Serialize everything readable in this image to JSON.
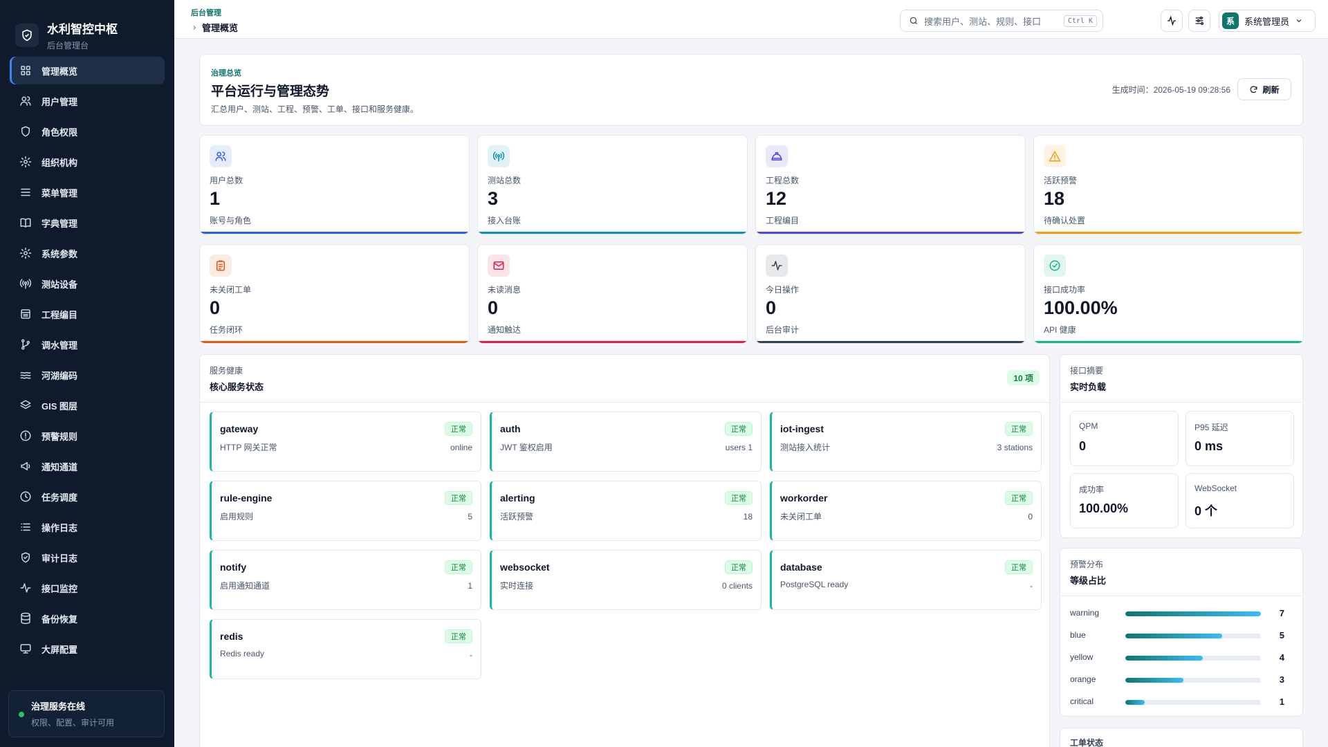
{
  "sidebar": {
    "brand_title": "水利智控中枢",
    "brand_subtitle": "后台管理台",
    "items": [
      {
        "label": "管理概览",
        "icon": "grid-icon",
        "active": true
      },
      {
        "label": "用户管理",
        "icon": "user-icon"
      },
      {
        "label": "角色权限",
        "icon": "shield-icon"
      },
      {
        "label": "组织机构",
        "icon": "gear-icon"
      },
      {
        "label": "菜单管理",
        "icon": "menu-icon"
      },
      {
        "label": "字典管理",
        "icon": "book-icon"
      },
      {
        "label": "系统参数",
        "icon": "gear-icon"
      },
      {
        "label": "测站设备",
        "icon": "antenna-icon"
      },
      {
        "label": "工程编目",
        "icon": "archive-icon"
      },
      {
        "label": "调水管理",
        "icon": "branch-icon"
      },
      {
        "label": "河湖编码",
        "icon": "waves-icon"
      },
      {
        "label": "GIS 图层",
        "icon": "layers-icon"
      },
      {
        "label": "预警规则",
        "icon": "alert-circle-icon"
      },
      {
        "label": "通知通道",
        "icon": "megaphone-icon"
      },
      {
        "label": "任务调度",
        "icon": "clock-icon"
      },
      {
        "label": "操作日志",
        "icon": "list-icon"
      },
      {
        "label": "审计日志",
        "icon": "shield-check-icon"
      },
      {
        "label": "接口监控",
        "icon": "activity-icon"
      },
      {
        "label": "备份恢复",
        "icon": "database-icon"
      },
      {
        "label": "大屏配置",
        "icon": "monitor-icon"
      }
    ],
    "service_title": "治理服务在线",
    "service_subtitle": "权限、配置、审计可用"
  },
  "header": {
    "crumb_parent": "后台管理",
    "crumb_current": "管理概览",
    "search_placeholder": "搜索用户、测站、规则、接口",
    "search_shortcut": "Ctrl K",
    "user_avatar": "系",
    "user_name": "系统管理员"
  },
  "overview": {
    "kicker": "治理总览",
    "title": "平台运行与管理态势",
    "description": "汇总用户、测站、工程、预警、工单、接口和服务健康。",
    "generated_time": "生成时间：2026-05-19 09:28:56",
    "refresh_label": "刷新"
  },
  "stats": [
    {
      "label": "用户总数",
      "value": "1",
      "sub": "账号与角色",
      "color": "#2563eb",
      "icon": "users-icon"
    },
    {
      "label": "测站总数",
      "value": "3",
      "sub": "接入台账",
      "color": "#0891b2",
      "icon": "antenna-icon"
    },
    {
      "label": "工程总数",
      "value": "12",
      "sub": "工程编目",
      "color": "#4f46e5",
      "icon": "helmet-icon"
    },
    {
      "label": "活跃预警",
      "value": "18",
      "sub": "待确认处置",
      "color": "#f59e0b",
      "icon": "warning-icon"
    },
    {
      "label": "未关闭工单",
      "value": "0",
      "sub": "任务闭环",
      "color": "#ea580c",
      "icon": "clipboard-icon"
    },
    {
      "label": "未读消息",
      "value": "0",
      "sub": "通知触达",
      "color": "#e11d48",
      "icon": "mail-icon"
    },
    {
      "label": "今日操作",
      "value": "0",
      "sub": "后台审计",
      "color": "#334155",
      "icon": "activity-icon"
    },
    {
      "label": "接口成功率",
      "value": "100.00%",
      "sub": "API 健康",
      "color": "#10b981",
      "icon": "check-circle-icon"
    }
  ],
  "health": {
    "kicker": "服务健康",
    "title": "核心服务状态",
    "count": "10 项",
    "services": [
      {
        "name": "gateway",
        "desc": "HTTP 网关正常",
        "metric": "online",
        "status": "正常"
      },
      {
        "name": "auth",
        "desc": "JWT 鉴权启用",
        "metric": "users 1",
        "status": "正常"
      },
      {
        "name": "iot-ingest",
        "desc": "测站接入统计",
        "metric": "3 stations",
        "status": "正常"
      },
      {
        "name": "rule-engine",
        "desc": "启用规则",
        "metric": "5",
        "status": "正常"
      },
      {
        "name": "alerting",
        "desc": "活跃预警",
        "metric": "18",
        "status": "正常"
      },
      {
        "name": "workorder",
        "desc": "未关闭工单",
        "metric": "0",
        "status": "正常"
      },
      {
        "name": "notify",
        "desc": "启用通知通道",
        "metric": "1",
        "status": "正常"
      },
      {
        "name": "websocket",
        "desc": "实时连接",
        "metric": "0 clients",
        "status": "正常"
      },
      {
        "name": "database",
        "desc": "PostgreSQL ready",
        "metric": "-",
        "status": "正常"
      },
      {
        "name": "redis",
        "desc": "Redis ready",
        "metric": "-",
        "status": "正常"
      }
    ]
  },
  "api": {
    "kicker": "接口摘要",
    "title": "实时负载",
    "metrics": [
      {
        "label": "QPM",
        "value": "0"
      },
      {
        "label": "P95 延迟",
        "value": "0 ms"
      },
      {
        "label": "成功率",
        "value": "100.00%"
      },
      {
        "label": "WebSocket",
        "value": "0 个"
      }
    ]
  },
  "alerts": {
    "kicker": "预警分布",
    "title": "等级占比",
    "max": 7,
    "levels": [
      {
        "label": "warning",
        "value": 7
      },
      {
        "label": "blue",
        "value": 5
      },
      {
        "label": "yellow",
        "value": 4
      },
      {
        "label": "orange",
        "value": 3
      },
      {
        "label": "critical",
        "value": 1
      }
    ]
  },
  "workorder_panel": {
    "kicker": "工单状态"
  }
}
